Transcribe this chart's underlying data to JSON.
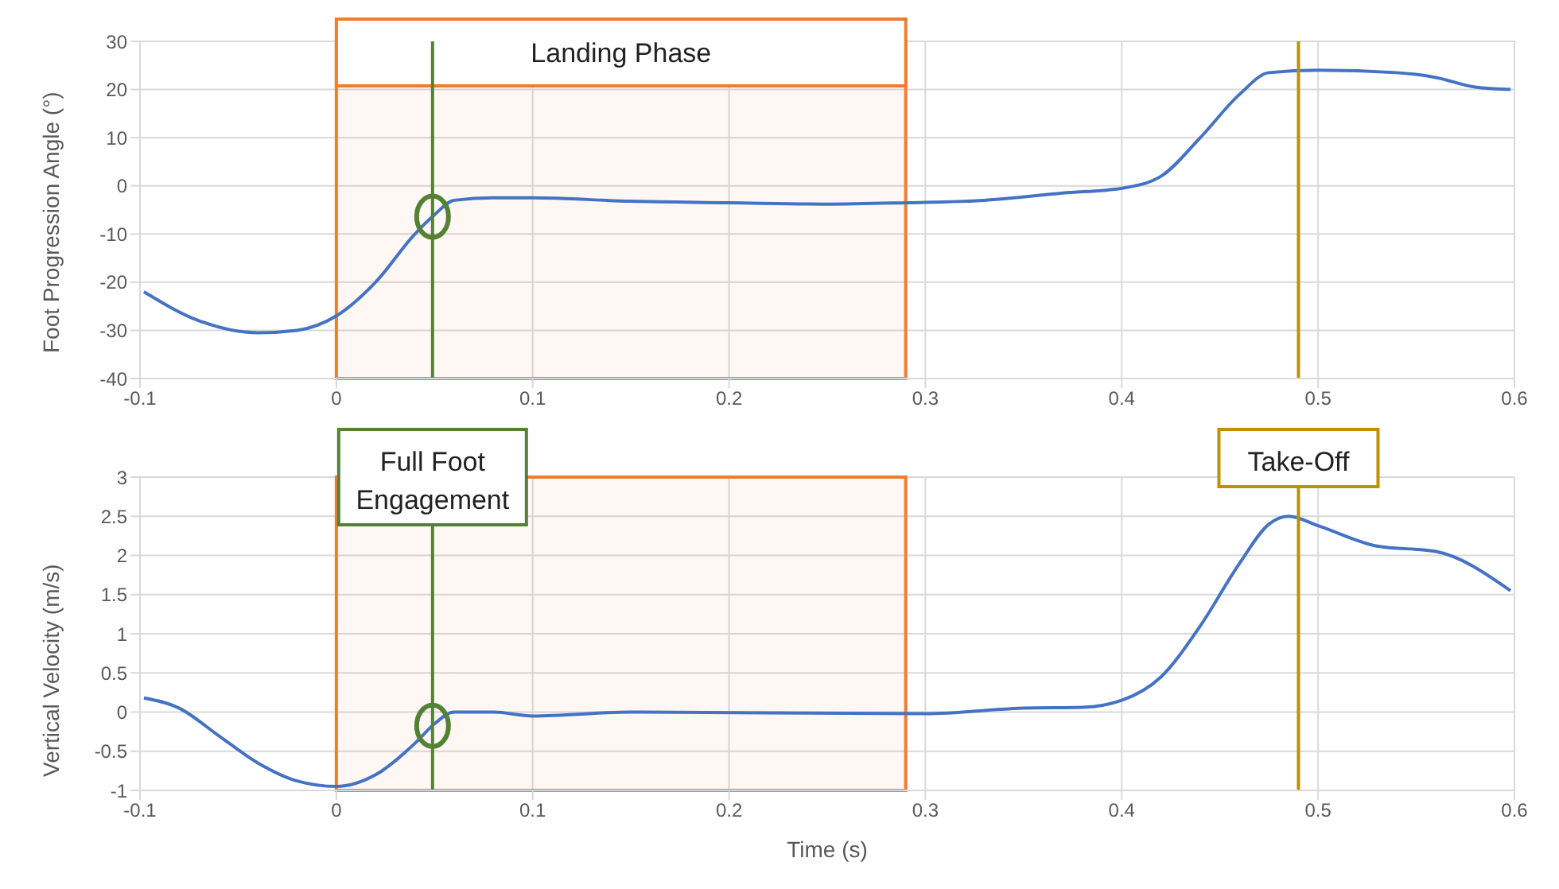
{
  "chart_data": [
    {
      "type": "line",
      "ylabel": "Foot Progression Angle (°)",
      "xlim": [
        -0.1,
        0.6
      ],
      "xticks": [
        -0.1,
        0,
        0.1,
        0.2,
        0.3,
        0.4,
        0.5,
        0.6
      ],
      "ylim": [
        -40,
        30
      ],
      "yticks": [
        -40,
        -30,
        -20,
        -10,
        0,
        10,
        20,
        30
      ],
      "grid": true,
      "series": [
        {
          "color": "#4472c4",
          "x": [
            -0.098,
            -0.07,
            -0.04,
            -0.02,
            0,
            0.02,
            0.04,
            0.05,
            0.06,
            0.08,
            0.1,
            0.15,
            0.2,
            0.25,
            0.29,
            0.33,
            0.37,
            0.4,
            0.42,
            0.44,
            0.46,
            0.475,
            0.5,
            0.54,
            0.56,
            0.58,
            0.598
          ],
          "values": [
            -22,
            -28,
            -30.5,
            -30,
            -27,
            -20,
            -10,
            -6,
            -3,
            -2.5,
            -2.5,
            -3.2,
            -3.5,
            -3.8,
            -3.5,
            -3,
            -1.5,
            -0.5,
            2,
            10,
            19,
            23.5,
            24,
            23.5,
            22.5,
            20.5,
            20
          ]
        }
      ],
      "bands": [
        {
          "axis": "x",
          "from": 0,
          "to": 0.29,
          "label": "Landing Phase",
          "color": "#ed7d31"
        }
      ],
      "ref_lines": [
        {
          "axis": "x",
          "value": 0.049,
          "label": null,
          "color": "#548235"
        },
        {
          "axis": "x",
          "value": 0.49,
          "label": null,
          "color": "#bf9000"
        }
      ]
    },
    {
      "type": "line",
      "ylabel": "Vertical Velocity (m/s)",
      "xlabel": "Time (s)",
      "xlim": [
        -0.1,
        0.6
      ],
      "xticks": [
        -0.1,
        0,
        0.1,
        0.2,
        0.3,
        0.4,
        0.5,
        0.6
      ],
      "ylim": [
        -1,
        3
      ],
      "yticks": [
        -1,
        -0.5,
        0,
        0.5,
        1,
        1.5,
        2,
        2.5,
        3
      ],
      "grid": true,
      "series": [
        {
          "color": "#4472c4",
          "x": [
            -0.098,
            -0.08,
            -0.06,
            -0.04,
            -0.02,
            0,
            0.02,
            0.04,
            0.05,
            0.06,
            0.08,
            0.1,
            0.15,
            0.3,
            0.35,
            0.38,
            0.4,
            0.42,
            0.44,
            0.46,
            0.475,
            0.485,
            0.5,
            0.53,
            0.56,
            0.598
          ],
          "values": [
            0.18,
            0.05,
            -0.3,
            -0.65,
            -0.88,
            -0.95,
            -0.8,
            -0.4,
            -0.15,
            0,
            0,
            -0.05,
            0,
            -0.02,
            0.05,
            0.06,
            0.15,
            0.45,
            1.1,
            1.9,
            2.4,
            2.5,
            2.38,
            2.12,
            2.05,
            1.55
          ]
        }
      ],
      "bands": [
        {
          "axis": "x",
          "from": 0,
          "to": 0.29,
          "label": null,
          "color": "#ed7d31"
        }
      ],
      "ref_lines": [
        {
          "axis": "x",
          "value": 0.049,
          "label": "Full Foot Engagement",
          "color": "#548235"
        },
        {
          "axis": "x",
          "value": 0.49,
          "label": "Take-Off",
          "color": "#bf9000"
        }
      ]
    }
  ]
}
